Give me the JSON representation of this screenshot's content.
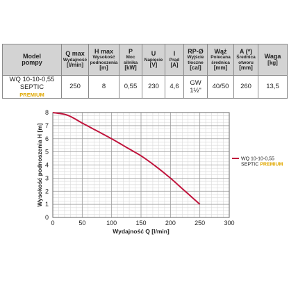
{
  "table": {
    "headers": [
      {
        "top": "Model",
        "bottom": "pompy",
        "sub": "",
        "unit": ""
      },
      {
        "top": "Q max",
        "bottom": "",
        "sub": "Wydajność",
        "unit": "[l/min]"
      },
      {
        "top": "H max",
        "bottom": "",
        "sub": "Wysokość podnoszenia",
        "unit": "[m]"
      },
      {
        "top": "P",
        "bottom": "",
        "sub": "Moc silnika",
        "unit": "[kW]"
      },
      {
        "top": "U",
        "bottom": "",
        "sub": "Napięcie",
        "unit": "[V]"
      },
      {
        "top": "I",
        "bottom": "",
        "sub": "Prąd",
        "unit": "[A]"
      },
      {
        "top": "RP-Ø",
        "bottom": "",
        "sub": "Wyjście tłoczne",
        "unit": "[cal]"
      },
      {
        "top": "Wąż",
        "bottom": "",
        "sub": "Polecana średnica",
        "unit": "[mm]"
      },
      {
        "top": "A (*)",
        "bottom": "",
        "sub": "Średnica otworu",
        "unit": "[mm]"
      },
      {
        "top": "Waga",
        "bottom": "",
        "sub": "",
        "unit": "[kg]"
      }
    ],
    "row": {
      "model": "WQ 10-10-0,55 SEPTIC",
      "model_badge": "PREMIUM",
      "cells": [
        "250",
        "8",
        "0,55",
        "230",
        "4,6",
        "GW 1½\"",
        "40/50",
        "260",
        "13,5"
      ]
    }
  },
  "chart_data": {
    "type": "line",
    "xlabel": "Wydajność Q [l/min]",
    "ylabel": "Wysokość podnoszenia H [m]",
    "xlim": [
      0,
      300
    ],
    "ylim": [
      0,
      8
    ],
    "x_ticks": [
      0,
      50,
      100,
      150,
      200,
      250,
      300
    ],
    "y_ticks": [
      0,
      1,
      2,
      3,
      4,
      5,
      6,
      7,
      8
    ],
    "grid": true,
    "legend_position": "right",
    "series": [
      {
        "name": "WQ 10-10-0,55 SEPTIC",
        "name_badge": "PREMIUM",
        "color": "#c0143c",
        "x": [
          0,
          25,
          50,
          75,
          100,
          125,
          150,
          175,
          200,
          225,
          250
        ],
        "y": [
          8.0,
          7.8,
          7.2,
          6.6,
          6.0,
          5.35,
          4.7,
          3.9,
          3.0,
          2.0,
          1.0
        ]
      }
    ]
  }
}
